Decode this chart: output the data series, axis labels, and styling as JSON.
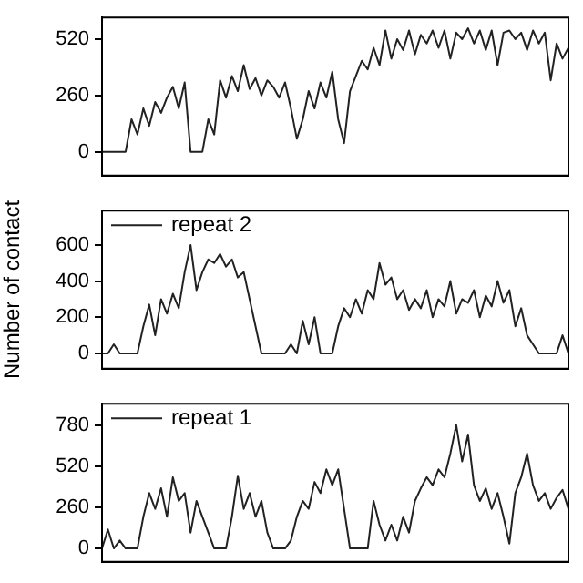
{
  "chart_data": [
    {
      "type": "line",
      "categories": [
        null,
        null,
        null,
        null,
        null,
        null,
        null,
        null,
        null,
        null,
        null,
        null,
        null,
        null,
        null,
        null,
        null,
        null,
        null,
        null,
        null,
        null,
        null,
        null,
        null,
        null,
        null,
        null,
        null,
        null,
        null,
        null,
        null,
        null,
        null,
        null,
        null,
        null,
        null,
        null,
        null,
        null,
        null,
        null,
        null,
        null,
        null,
        null,
        null,
        null,
        null,
        null,
        null,
        null,
        null,
        null,
        null,
        null,
        null,
        null,
        null,
        null,
        null,
        null,
        null,
        null,
        null,
        null,
        null,
        null,
        null,
        null,
        null,
        null,
        null,
        null,
        null,
        null,
        null,
        null
      ],
      "ylim": [
        -110,
        620
      ],
      "yticks": [
        0,
        260,
        520
      ],
      "tick_labels": "y",
      "grid": false,
      "series": [
        {
          "color": "#222222",
          "values": [
            0,
            0,
            0,
            0,
            0,
            150,
            80,
            200,
            120,
            230,
            180,
            250,
            300,
            200,
            320,
            0,
            0,
            0,
            150,
            80,
            330,
            250,
            350,
            280,
            400,
            290,
            340,
            260,
            330,
            300,
            250,
            320,
            200,
            60,
            150,
            280,
            200,
            320,
            250,
            370,
            150,
            40,
            280,
            350,
            420,
            380,
            480,
            400,
            560,
            430,
            520,
            470,
            560,
            450,
            540,
            500,
            560,
            480,
            560,
            430,
            550,
            520,
            570,
            500,
            560,
            470,
            560,
            400,
            550,
            560,
            520,
            550,
            470,
            560,
            500,
            550,
            330,
            500,
            430,
            480
          ]
        }
      ]
    },
    {
      "type": "line",
      "ylabel": "Number of contact",
      "categories": [
        null,
        null,
        null,
        null,
        null,
        null,
        null,
        null,
        null,
        null,
        null,
        null,
        null,
        null,
        null,
        null,
        null,
        null,
        null,
        null,
        null,
        null,
        null,
        null,
        null,
        null,
        null,
        null,
        null,
        null,
        null,
        null,
        null,
        null,
        null,
        null,
        null,
        null,
        null,
        null,
        null,
        null,
        null,
        null,
        null,
        null,
        null,
        null,
        null,
        null,
        null,
        null,
        null,
        null,
        null,
        null,
        null,
        null,
        null,
        null,
        null,
        null,
        null,
        null,
        null,
        null,
        null,
        null,
        null,
        null,
        null,
        null,
        null,
        null,
        null,
        null,
        null,
        null,
        null,
        null
      ],
      "ylim": [
        -85,
        790
      ],
      "yticks": [
        0,
        200,
        400,
        600
      ],
      "tick_labels": "y",
      "grid": false,
      "legend": "top left",
      "series": [
        {
          "name": "repeat 2",
          "color": "#222222",
          "values": [
            0,
            0,
            50,
            0,
            0,
            0,
            0,
            150,
            270,
            100,
            300,
            220,
            330,
            250,
            450,
            600,
            350,
            450,
            520,
            500,
            550,
            480,
            520,
            420,
            450,
            300,
            150,
            0,
            0,
            0,
            0,
            0,
            50,
            0,
            180,
            50,
            200,
            0,
            0,
            0,
            150,
            250,
            200,
            300,
            220,
            350,
            300,
            500,
            380,
            420,
            300,
            350,
            240,
            300,
            250,
            350,
            200,
            300,
            260,
            400,
            220,
            300,
            280,
            350,
            200,
            320,
            260,
            400,
            280,
            350,
            150,
            250,
            100,
            50,
            0,
            0,
            0,
            0,
            100,
            0
          ]
        }
      ]
    },
    {
      "type": "line",
      "categories": [
        null,
        null,
        null,
        null,
        null,
        null,
        null,
        null,
        null,
        null,
        null,
        null,
        null,
        null,
        null,
        null,
        null,
        null,
        null,
        null,
        null,
        null,
        null,
        null,
        null,
        null,
        null,
        null,
        null,
        null,
        null,
        null,
        null,
        null,
        null,
        null,
        null,
        null,
        null,
        null,
        null,
        null,
        null,
        null,
        null,
        null,
        null,
        null,
        null,
        null,
        null,
        null,
        null,
        null,
        null,
        null,
        null,
        null,
        null,
        null,
        null,
        null,
        null,
        null,
        null,
        null,
        null,
        null,
        null,
        null,
        null,
        null,
        null,
        null,
        null,
        null,
        null,
        null,
        null,
        null
      ],
      "ylim": [
        -85,
        915
      ],
      "yticks": [
        0,
        260,
        520,
        780
      ],
      "tick_labels": "y",
      "grid": false,
      "legend": "top left",
      "series": [
        {
          "name": "repeat 1",
          "color": "#222222",
          "values": [
            0,
            120,
            0,
            50,
            0,
            0,
            0,
            200,
            350,
            250,
            380,
            200,
            450,
            300,
            350,
            100,
            300,
            200,
            100,
            0,
            0,
            0,
            200,
            460,
            250,
            350,
            200,
            300,
            100,
            0,
            0,
            0,
            50,
            200,
            300,
            250,
            420,
            350,
            500,
            400,
            500,
            250,
            0,
            0,
            0,
            0,
            300,
            150,
            50,
            150,
            50,
            200,
            100,
            300,
            380,
            450,
            400,
            500,
            450,
            600,
            780,
            550,
            720,
            400,
            300,
            380,
            250,
            350,
            200,
            30,
            350,
            450,
            600,
            400,
            300,
            350,
            250,
            320,
            370,
            250
          ]
        }
      ]
    }
  ]
}
